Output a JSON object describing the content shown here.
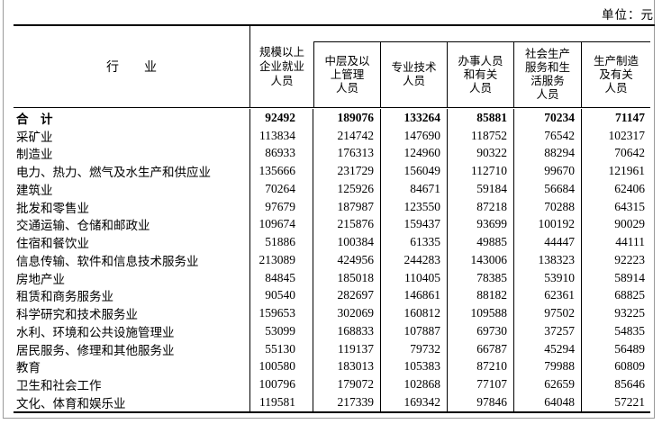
{
  "unit_note": "单位：元",
  "colors": {
    "rule": "#000000",
    "frame": "#9a9a9a",
    "text": "#000000",
    "background": "#ffffff"
  },
  "table": {
    "row_header_label": "行　　业",
    "columns": [
      "规模以上\n企业就业\n人员",
      "中层及以\n上管理\n人员",
      "专业技术\n人员",
      "办事人员\n和有关\n人员",
      "社会生产\n服务和生\n活服务\n人员",
      "生产制造\n及有关\n人员"
    ],
    "rows": [
      {
        "label": "合　计",
        "values": [
          "92492",
          "189076",
          "133264",
          "85881",
          "70234",
          "71147"
        ]
      },
      {
        "label": "采矿业",
        "values": [
          "113834",
          "214742",
          "147690",
          "118752",
          "76542",
          "102317"
        ]
      },
      {
        "label": "制造业",
        "values": [
          "86933",
          "176313",
          "124960",
          "90322",
          "88294",
          "70642"
        ]
      },
      {
        "label": "电力、热力、燃气及水生产和供应业",
        "values": [
          "135666",
          "231729",
          "156049",
          "112710",
          "99670",
          "121961"
        ]
      },
      {
        "label": "建筑业",
        "values": [
          "70264",
          "125926",
          "84671",
          "59184",
          "56684",
          "62406"
        ]
      },
      {
        "label": "批发和零售业",
        "values": [
          "97679",
          "187987",
          "123550",
          "87218",
          "70288",
          "64315"
        ]
      },
      {
        "label": "交通运输、仓储和邮政业",
        "values": [
          "109674",
          "215876",
          "159437",
          "93699",
          "100192",
          "90029"
        ]
      },
      {
        "label": "住宿和餐饮业",
        "values": [
          "51886",
          "100384",
          "61335",
          "49885",
          "44447",
          "44111"
        ]
      },
      {
        "label": "信息传输、软件和信息技术服务业",
        "values": [
          "213089",
          "424956",
          "244283",
          "143006",
          "138323",
          "92223"
        ]
      },
      {
        "label": "房地产业",
        "values": [
          "84845",
          "185018",
          "110405",
          "78385",
          "53910",
          "58914"
        ]
      },
      {
        "label": "租赁和商务服务业",
        "values": [
          "90540",
          "282697",
          "146861",
          "88182",
          "62361",
          "68825"
        ]
      },
      {
        "label": "科学研究和技术服务业",
        "values": [
          "159653",
          "302069",
          "160812",
          "109588",
          "97502",
          "93225"
        ]
      },
      {
        "label": "水利、环境和公共设施管理业",
        "values": [
          "53099",
          "168833",
          "107887",
          "69730",
          "37257",
          "54835"
        ]
      },
      {
        "label": "居民服务、修理和其他服务业",
        "values": [
          "55130",
          "119137",
          "79732",
          "66787",
          "45294",
          "56489"
        ]
      },
      {
        "label": "教育",
        "values": [
          "100580",
          "183013",
          "105383",
          "87210",
          "79988",
          "60809"
        ]
      },
      {
        "label": "卫生和社会工作",
        "values": [
          "100796",
          "179072",
          "102868",
          "77107",
          "62659",
          "85646"
        ]
      },
      {
        "label": "文化、体育和娱乐业",
        "values": [
          "119581",
          "217339",
          "169342",
          "97846",
          "64048",
          "57221"
        ]
      }
    ]
  }
}
